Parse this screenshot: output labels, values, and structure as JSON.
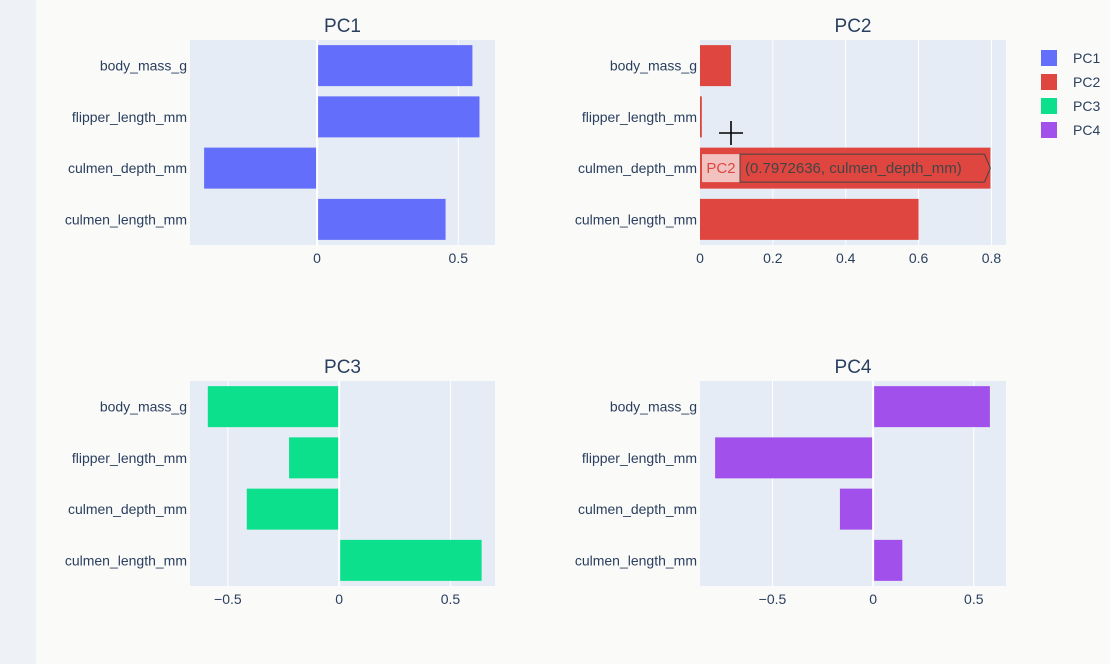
{
  "colors": {
    "plot_bg": "#e5ecf6",
    "grid": "#ffffff",
    "text": "#2a3f5f",
    "PC1": "#636efa",
    "PC2": "#df4640",
    "PC3": "#0de08d",
    "PC4": "#a250ec"
  },
  "chart_data": [
    {
      "type": "bar",
      "orientation": "horizontal",
      "title": "PC1",
      "categories": [
        "body_mass_g",
        "flipper_length_mm",
        "culmen_depth_mm",
        "culmen_length_mm"
      ],
      "series": [
        {
          "name": "PC1",
          "values": [
            0.55,
            0.575,
            -0.4,
            0.455
          ]
        }
      ],
      "xlim": [
        -0.45,
        0.63
      ],
      "xticks": [
        0,
        0.5
      ],
      "xtick_labels": [
        "0",
        "0.5"
      ]
    },
    {
      "type": "bar",
      "orientation": "horizontal",
      "title": "PC2",
      "categories": [
        "body_mass_g",
        "flipper_length_mm",
        "culmen_depth_mm",
        "culmen_length_mm"
      ],
      "series": [
        {
          "name": "PC2",
          "values": [
            0.085,
            0.005,
            0.7972636,
            0.6
          ]
        }
      ],
      "xlim": [
        0,
        0.84
      ],
      "xticks": [
        0,
        0.2,
        0.4,
        0.6,
        0.8
      ],
      "xtick_labels": [
        "0",
        "0.2",
        "0.4",
        "0.6",
        "0.8"
      ]
    },
    {
      "type": "bar",
      "orientation": "horizontal",
      "title": "PC3",
      "categories": [
        "body_mass_g",
        "flipper_length_mm",
        "culmen_depth_mm",
        "culmen_length_mm"
      ],
      "series": [
        {
          "name": "PC3",
          "values": [
            -0.59,
            -0.225,
            -0.415,
            0.64
          ]
        }
      ],
      "xlim": [
        -0.67,
        0.7
      ],
      "xticks": [
        -0.5,
        0,
        0.5
      ],
      "xtick_labels": [
        "−0.5",
        "0",
        "0.5"
      ]
    },
    {
      "type": "bar",
      "orientation": "horizontal",
      "title": "PC4",
      "categories": [
        "body_mass_g",
        "flipper_length_mm",
        "culmen_depth_mm",
        "culmen_length_mm"
      ],
      "series": [
        {
          "name": "PC4",
          "values": [
            0.58,
            -0.785,
            -0.165,
            0.145
          ]
        }
      ],
      "xlim": [
        -0.86,
        0.66
      ],
      "xticks": [
        -0.5,
        0,
        0.5
      ],
      "xtick_labels": [
        "−0.5",
        "0",
        "0.5"
      ]
    }
  ],
  "legend": {
    "placement": "top-right",
    "items": [
      {
        "label": "PC1",
        "color": "#636efa"
      },
      {
        "label": "PC2",
        "color": "#df4640"
      },
      {
        "label": "PC3",
        "color": "#0de08d"
      },
      {
        "label": "PC4",
        "color": "#a250ec"
      }
    ]
  },
  "hover": {
    "subplot": 1,
    "category_index": 2,
    "series_label": "PC2",
    "text": "(0.7972636, culmen_depth_mm)"
  }
}
